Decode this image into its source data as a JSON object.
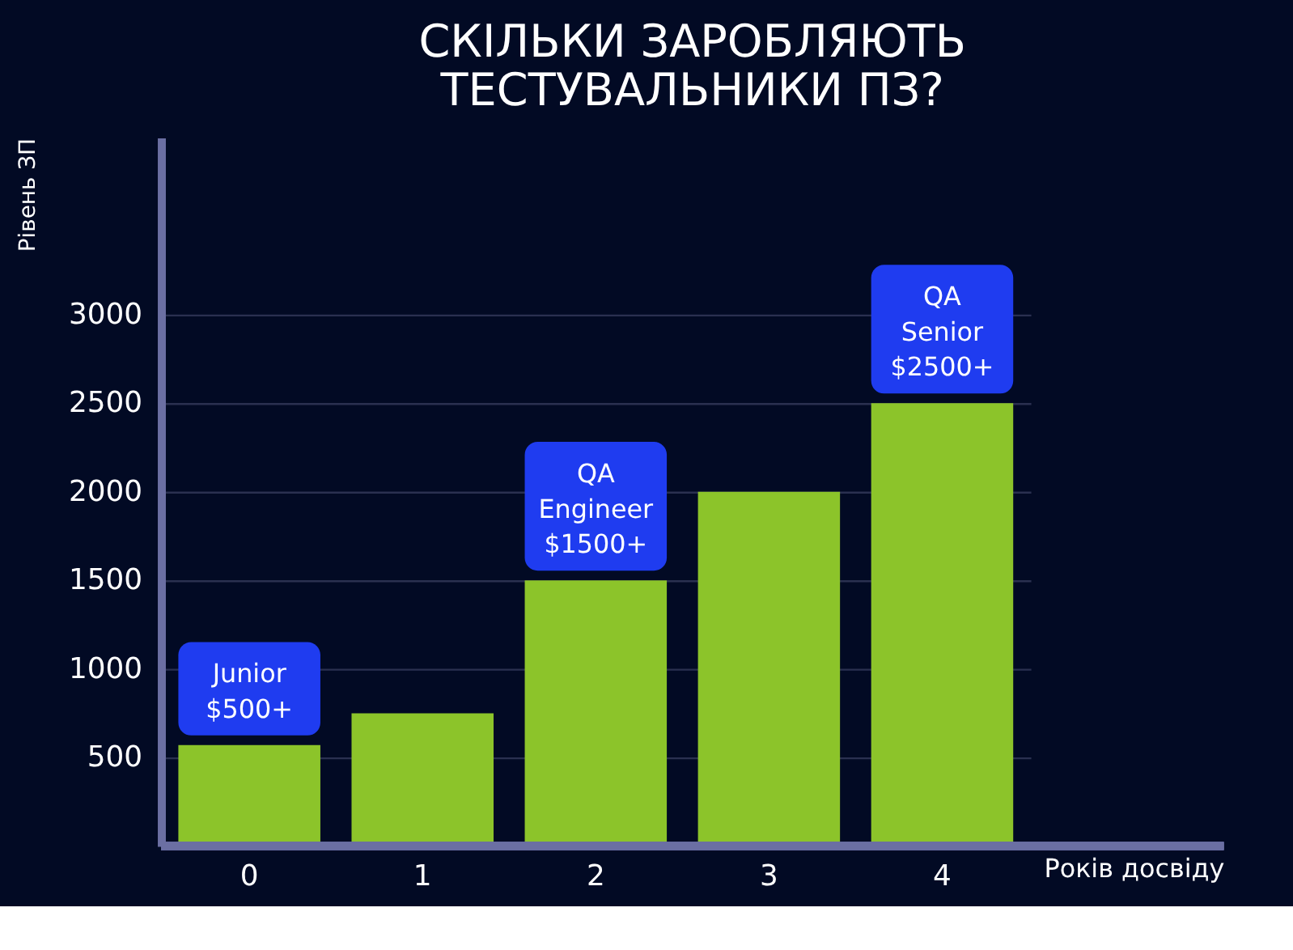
{
  "chart_data": {
    "type": "bar",
    "title": "СКІЛЬКИ ЗАРОБЛЯЮТЬ\nТЕСТУВАЛЬНИКИ ПЗ?",
    "xlabel": "Років досвіду",
    "ylabel": "Рівень ЗП",
    "categories": [
      "0",
      "1",
      "2",
      "3",
      "4"
    ],
    "values": [
      570,
      750,
      1500,
      2000,
      2500
    ],
    "color": "#8cc42a",
    "ylim": [
      0,
      4000
    ],
    "yticks": [
      500,
      1000,
      1500,
      2000,
      2500,
      3000
    ],
    "grid": "y",
    "legend": false,
    "annotations": [
      {
        "text": "Junior\n$500+",
        "x": "0",
        "y": 570
      },
      {
        "text": "QA\nEngineer\n$1500+",
        "x": "2",
        "y": 1500
      },
      {
        "text": "QA\nSenior\n$2500+",
        "x": "4",
        "y": 2500
      }
    ]
  }
}
